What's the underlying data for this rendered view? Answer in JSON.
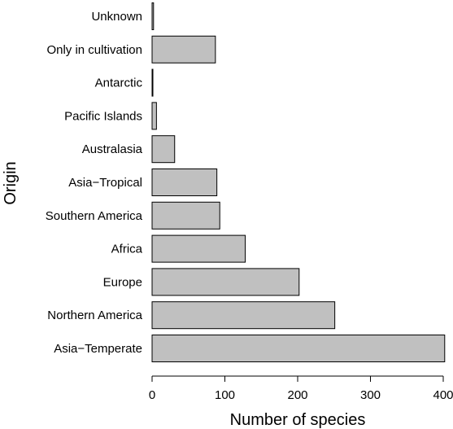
{
  "chart_data": {
    "type": "bar",
    "orientation": "horizontal",
    "categories": [
      "Asia−Temperate",
      "Northern America",
      "Europe",
      "Africa",
      "Southern America",
      "Asia−Tropical",
      "Australasia",
      "Pacific Islands",
      "Antarctic",
      "Only in cultivation",
      "Unknown"
    ],
    "values": [
      402,
      251,
      202,
      128,
      93,
      89,
      31,
      6,
      1,
      87,
      2
    ],
    "xlabel": "Number of species",
    "ylabel": "Origin",
    "xlim": [
      0,
      400
    ],
    "xticks": [
      0,
      100,
      200,
      300,
      400
    ],
    "xtick_labels": [
      "0",
      "100",
      "200",
      "300",
      "400"
    ],
    "grid": false,
    "bar_color": "#c0c0c0",
    "bar_edge_color": "#000000"
  }
}
